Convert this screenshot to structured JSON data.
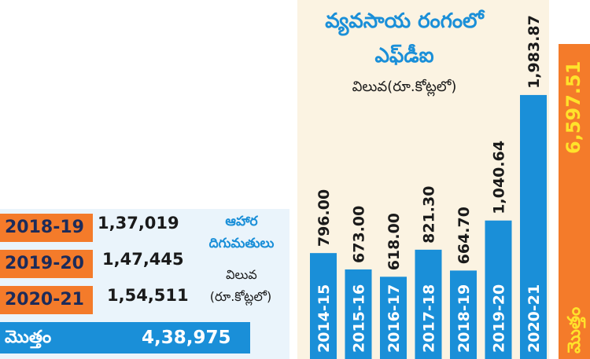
{
  "food_imports": {
    "title_line1": "ఆహార",
    "title_line2": "దిగుమతులు",
    "unit_line1": "విలువ",
    "unit_line2": "(రూ.కోట్లలో)",
    "rows": [
      {
        "year": "2018-19",
        "value": "1,37,019"
      },
      {
        "year": "2019-20",
        "value": "1,47,445"
      },
      {
        "year": "2020-21",
        "value": "1,54,511"
      }
    ],
    "total_label": "మొత్తం",
    "total_value": "4,38,975"
  },
  "chart_data": {
    "type": "bar",
    "title": "వ్యవసాయ రంగంలో ఎఫ్‌డీఐ",
    "title_line1": "వ్యవసాయ రంగంలో",
    "title_line2": "ఎఫ్‌డీఐ",
    "ylabel": "విలువ(రూ.కోట్లలో)",
    "categories": [
      "2014-15",
      "2015-16",
      "2016-17",
      "2017-18",
      "2018-19",
      "2019-20",
      "2020-21"
    ],
    "values": [
      796.0,
      673.0,
      618.0,
      821.3,
      664.7,
      1040.64,
      1983.87
    ],
    "value_labels": [
      "796.00",
      "673.00",
      "618.00",
      "821.30",
      "664.70",
      "1,040.64",
      "1,983.87"
    ],
    "total_label": "మొత్తం",
    "total_value": "6,597.51",
    "bar_color": "#1a8fd8",
    "total_color": "#f47b2a",
    "total_text_color": "#ffe22b"
  }
}
